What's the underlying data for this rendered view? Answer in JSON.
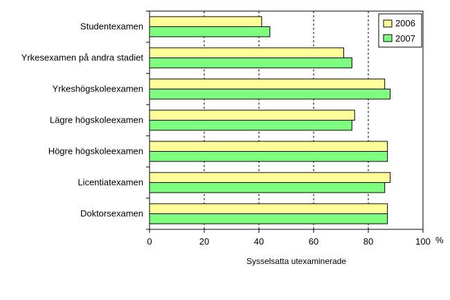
{
  "chart_data": {
    "type": "bar",
    "orientation": "horizontal",
    "categories": [
      "Studentexamen",
      "Yrkesexamen på andra stadiet",
      "Yrkeshögskoleexamen",
      "Lägre högskoleexamen",
      "Högre högskoleexamen",
      "Licentiatexamen",
      "Doktorsexamen"
    ],
    "series": [
      {
        "name": "2006",
        "color": "#ffff99",
        "values": [
          41,
          71,
          86,
          75,
          87,
          88,
          87
        ]
      },
      {
        "name": "2007",
        "color": "#7fff7f",
        "values": [
          44,
          74,
          88,
          74,
          87,
          86,
          87
        ]
      }
    ],
    "xlabel": "Sysselsatta utexaminerade",
    "xunit": "%",
    "xlim": [
      0,
      100
    ],
    "xticks": [
      0,
      20,
      40,
      60,
      80,
      100
    ],
    "grid": "vertical dashed",
    "legend": "top-right"
  }
}
